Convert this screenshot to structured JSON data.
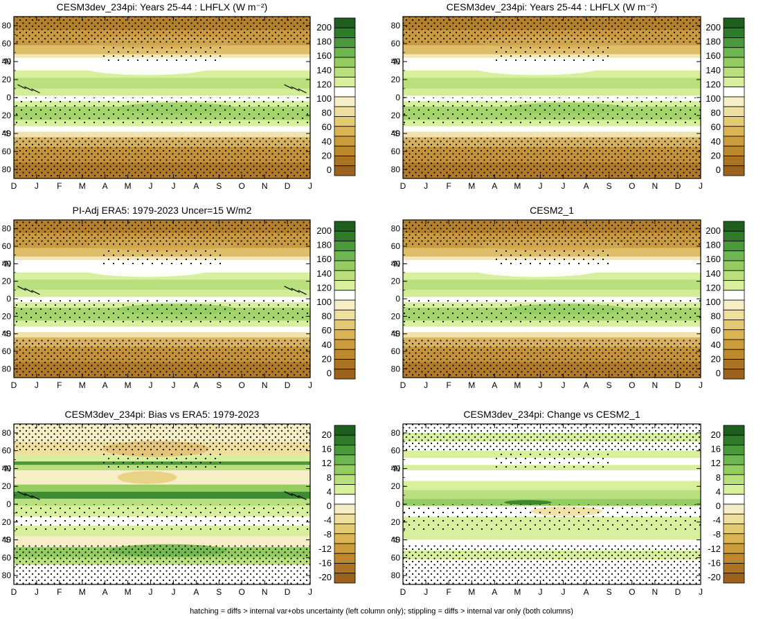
{
  "footer_note": "hatching = diffs > internal var+obs uncertainty (left column only); stippling = diffs > internal var only (both columns)",
  "chart_data": [
    {
      "type": "heatmap",
      "id": "p1",
      "kind": "abs",
      "title": "CESM3dev_234pi: Years 25-44 : LHFLX (W m⁻²)",
      "x_ticks": [
        "D",
        "J",
        "F",
        "M",
        "A",
        "M",
        "J",
        "J",
        "A",
        "S",
        "O",
        "N",
        "D",
        "J"
      ],
      "y_ticks": [
        "80",
        "60",
        "40",
        "20",
        "0",
        "20",
        "40",
        "60",
        "80"
      ],
      "y_range": [
        -90,
        90
      ],
      "colorbar_labels": [
        "200",
        "180",
        "160",
        "140",
        "120",
        "100",
        "80",
        "60",
        "40",
        "20",
        "0"
      ],
      "stipple": true,
      "hatch": true
    },
    {
      "type": "heatmap",
      "id": "p2",
      "kind": "abs",
      "title": "CESM3dev_234pi: Years 25-44 : LHFLX (W m⁻²)",
      "x_ticks": [
        "D",
        "J",
        "F",
        "M",
        "A",
        "M",
        "J",
        "J",
        "A",
        "S",
        "O",
        "N",
        "D",
        "J"
      ],
      "y_ticks": [
        "80",
        "60",
        "40",
        "20",
        "0",
        "20",
        "40",
        "60",
        "80"
      ],
      "y_range": [
        -90,
        90
      ],
      "colorbar_labels": [
        "200",
        "180",
        "160",
        "140",
        "120",
        "100",
        "80",
        "60",
        "40",
        "20",
        "0"
      ],
      "stipple": true,
      "hatch": false
    },
    {
      "type": "heatmap",
      "id": "p3",
      "kind": "abs",
      "title": "PI-Adj ERA5: 1979-2023 Uncer=15 W/m2",
      "x_ticks": [
        "D",
        "J",
        "F",
        "M",
        "A",
        "M",
        "J",
        "J",
        "A",
        "S",
        "O",
        "N",
        "D",
        "J"
      ],
      "y_ticks": [
        "80",
        "60",
        "40",
        "20",
        "0",
        "20",
        "40",
        "60",
        "80"
      ],
      "y_range": [
        -90,
        90
      ],
      "colorbar_labels": [
        "200",
        "180",
        "160",
        "140",
        "120",
        "100",
        "80",
        "60",
        "40",
        "20",
        "0"
      ],
      "stipple": true,
      "hatch": true
    },
    {
      "type": "heatmap",
      "id": "p4",
      "kind": "abs",
      "title": "CESM2_1",
      "x_ticks": [
        "D",
        "J",
        "F",
        "M",
        "A",
        "M",
        "J",
        "J",
        "A",
        "S",
        "O",
        "N",
        "D",
        "J"
      ],
      "y_ticks": [
        "80",
        "60",
        "40",
        "20",
        "0",
        "20",
        "40",
        "60",
        "80"
      ],
      "y_range": [
        -90,
        90
      ],
      "colorbar_labels": [
        "200",
        "180",
        "160",
        "140",
        "120",
        "100",
        "80",
        "60",
        "40",
        "20",
        "0"
      ],
      "stipple": true,
      "hatch": false
    },
    {
      "type": "heatmap",
      "id": "p5",
      "kind": "bias",
      "title": "CESM3dev_234pi: Bias vs ERA5: 1979-2023",
      "x_ticks": [
        "D",
        "J",
        "F",
        "M",
        "A",
        "M",
        "J",
        "J",
        "A",
        "S",
        "O",
        "N",
        "D",
        "J"
      ],
      "y_ticks": [
        "80",
        "60",
        "40",
        "20",
        "0",
        "20",
        "40",
        "60",
        "80"
      ],
      "y_range": [
        -90,
        90
      ],
      "colorbar_labels": [
        "20",
        "16",
        "12",
        "8",
        "4",
        "0",
        "-4",
        "-8",
        "-12",
        "-16",
        "-20"
      ],
      "stipple": true,
      "hatch": true
    },
    {
      "type": "heatmap",
      "id": "p6",
      "kind": "change",
      "title": "CESM3dev_234pi: Change vs CESM2_1",
      "x_ticks": [
        "D",
        "J",
        "F",
        "M",
        "A",
        "M",
        "J",
        "J",
        "A",
        "S",
        "O",
        "N",
        "D",
        "J"
      ],
      "y_ticks": [
        "80",
        "60",
        "40",
        "20",
        "0",
        "20",
        "40",
        "60",
        "80"
      ],
      "y_range": [
        -90,
        90
      ],
      "colorbar_labels": [
        "20",
        "16",
        "12",
        "8",
        "4",
        "0",
        "-4",
        "-8",
        "-12",
        "-16",
        "-20"
      ],
      "stipple": true,
      "hatch": false
    }
  ]
}
